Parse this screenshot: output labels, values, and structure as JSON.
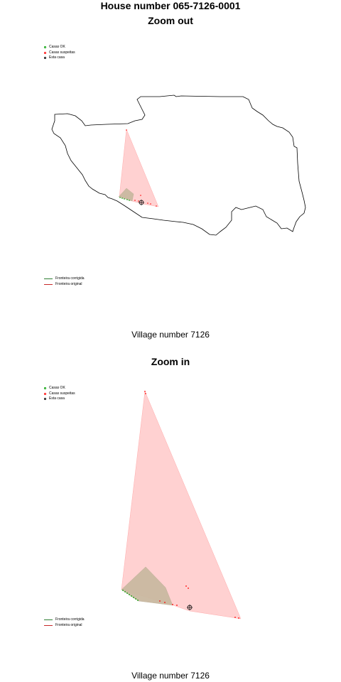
{
  "title": "House number 065-7126-0001",
  "panels": {
    "zoom_out": {
      "title": "Zoom out",
      "caption": "Village number 7126"
    },
    "zoom_in": {
      "title": "Zoom in",
      "caption": "Village number 7126"
    }
  },
  "legend_points": [
    {
      "label": "Casas OK",
      "color": "#00a000"
    },
    {
      "label": "Casas suspeitas",
      "color": "#ff0000"
    },
    {
      "label": "Esta casa",
      "color": "#000000"
    }
  ],
  "legend_lines": [
    {
      "label": "Fronteira corrigida",
      "color": "#2e7d32"
    },
    {
      "label": "Fronteira original",
      "color": "#c62828"
    }
  ],
  "colors": {
    "original_fill": "#ffcccc",
    "corrected_fill": "#c9b8a0",
    "outline": "#000000"
  }
}
